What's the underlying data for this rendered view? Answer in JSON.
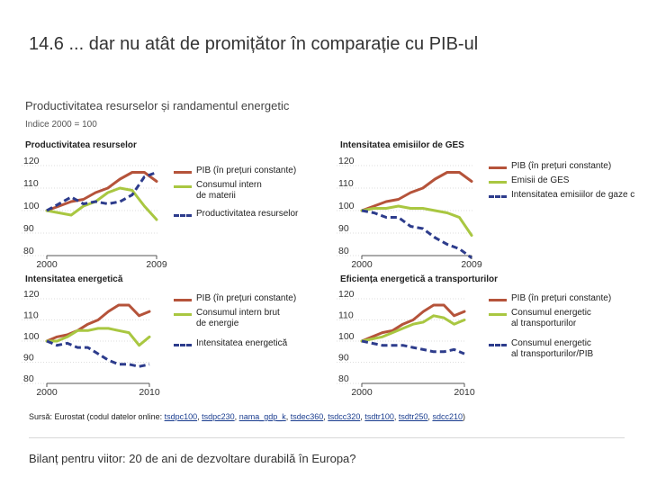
{
  "slide_title": "14.6 ... dar nu atât de promițător în comparație cu PIB-ul",
  "subtitle": "Productivitatea resurselor și randamentul energetic",
  "index_note": "Indice 2000 = 100",
  "colors": {
    "red": "#b5533a",
    "green": "#a9c741",
    "blue": "#2d3c8c",
    "axis": "#555555",
    "grid": "#bdbdbd"
  },
  "source": {
    "prefix": "Sursă: Eurostat (codul datelor online: ",
    "codes": [
      "tsdpc100",
      "tsdpc230",
      "nama_gdp_k",
      "tsdec360",
      "tsdcc320",
      "tsdtr100",
      "tsdtr250",
      "sdcc210"
    ],
    "separator": ", ",
    "suffix": ")"
  },
  "footer": "Bilanț pentru viitor: 20 de ani de dezvoltare durabilă în Europa?",
  "chart_data": [
    {
      "type": "line",
      "title": "Productivitatea resurselor",
      "ylim": [
        80,
        120
      ],
      "yticks": [
        "120",
        "110",
        "100",
        "90",
        "80"
      ],
      "xtick_labels": [
        "2000",
        "2009"
      ],
      "x": [
        2000,
        2001,
        2002,
        2003,
        2004,
        2005,
        2006,
        2007,
        2008,
        2009
      ],
      "series": [
        {
          "name": "PIB (în prețuri constante)",
          "color": "red",
          "dash": false,
          "values": [
            100,
            102,
            104,
            105,
            108,
            110,
            114,
            117,
            117,
            113
          ]
        },
        {
          "name": "Consumul intern\nde materii",
          "color": "green",
          "dash": false,
          "values": [
            100,
            99,
            98,
            102,
            104,
            108,
            110,
            109,
            102,
            96
          ]
        },
        {
          "name": "Productivitatea resurselor",
          "color": "blue",
          "dash": true,
          "values": [
            100,
            103,
            106,
            103,
            104,
            103,
            104,
            107,
            115,
            117
          ]
        }
      ]
    },
    {
      "type": "line",
      "title": "Intensitatea emisiilor de GES",
      "ylim": [
        80,
        120
      ],
      "yticks": [
        "120",
        "110",
        "100",
        "90",
        "80"
      ],
      "xtick_labels": [
        "2000",
        "2009"
      ],
      "x": [
        2000,
        2001,
        2002,
        2003,
        2004,
        2005,
        2006,
        2007,
        2008,
        2009
      ],
      "series": [
        {
          "name": "PIB (în prețuri constante)",
          "color": "red",
          "dash": false,
          "values": [
            100,
            102,
            104,
            105,
            108,
            110,
            114,
            117,
            117,
            113
          ]
        },
        {
          "name": "Emisii de GES",
          "color": "green",
          "dash": false,
          "values": [
            100,
            101,
            101,
            102,
            101,
            101,
            100,
            99,
            97,
            89
          ]
        },
        {
          "name": "Intensitatea emisiilor de gaze c",
          "color": "blue",
          "dash": true,
          "values": [
            100,
            99,
            97,
            97,
            93,
            92,
            88,
            85,
            83,
            79
          ]
        }
      ]
    },
    {
      "type": "line",
      "title": "Intensitatea energetică",
      "ylim": [
        80,
        120
      ],
      "yticks": [
        "120",
        "110",
        "100",
        "90",
        "80"
      ],
      "xtick_labels": [
        "2000",
        "2010"
      ],
      "x": [
        2000,
        2001,
        2002,
        2003,
        2004,
        2005,
        2006,
        2007,
        2008,
        2009,
        2010
      ],
      "series": [
        {
          "name": "PIB (în prețuri constante)",
          "color": "red",
          "dash": false,
          "values": [
            100,
            102,
            103,
            105,
            108,
            110,
            114,
            117,
            117,
            112,
            114
          ]
        },
        {
          "name": "Consumul intern brut\nde energie",
          "color": "green",
          "dash": false,
          "values": [
            100,
            100,
            102,
            105,
            105,
            106,
            106,
            105,
            104,
            98,
            102
          ]
        },
        {
          "name": "Intensitatea energetică",
          "color": "blue",
          "dash": true,
          "values": [
            100,
            98,
            99,
            97,
            97,
            94,
            91,
            89,
            89,
            88,
            89
          ]
        }
      ]
    },
    {
      "type": "line",
      "title": "Eficiența energetică a transporturilor",
      "ylim": [
        80,
        120
      ],
      "yticks": [
        "120",
        "110",
        "100",
        "90",
        "80"
      ],
      "xtick_labels": [
        "2000",
        "2010"
      ],
      "x": [
        2000,
        2001,
        2002,
        2003,
        2004,
        2005,
        2006,
        2007,
        2008,
        2009,
        2010
      ],
      "series": [
        {
          "name": "PIB (în prețuri constante)",
          "color": "red",
          "dash": false,
          "values": [
            100,
            102,
            104,
            105,
            108,
            110,
            114,
            117,
            117,
            112,
            114
          ]
        },
        {
          "name": "Consumul energetic\nal transporturilor",
          "color": "green",
          "dash": false,
          "values": [
            100,
            101,
            102,
            104,
            106,
            108,
            109,
            112,
            111,
            108,
            110
          ]
        },
        {
          "name": "Consumul energetic\nal transporturilor/PIB",
          "color": "blue",
          "dash": true,
          "values": [
            100,
            99,
            98,
            98,
            98,
            97,
            96,
            95,
            95,
            96,
            94
          ]
        }
      ]
    }
  ]
}
